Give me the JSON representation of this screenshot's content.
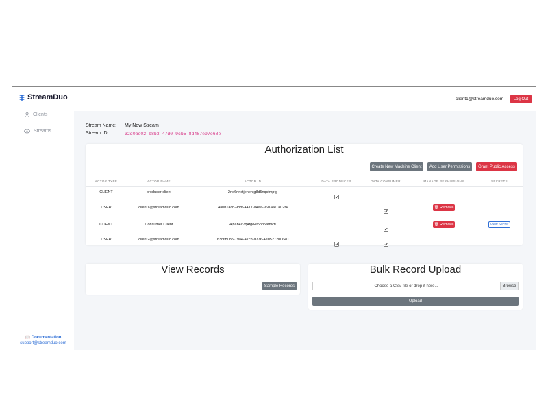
{
  "sidebar": {
    "brand": "StreamDuo",
    "nav": [
      "Clients",
      "Streams"
    ],
    "footer": {
      "documentation": "Documentation",
      "support": "support@streamduo.com"
    }
  },
  "header": {
    "email": "client1@streamduo.com",
    "logout": "Log Out"
  },
  "stream": {
    "name_label": "Stream Name:",
    "name": "My New Stream",
    "id_label": "Stream ID:",
    "id": "32d0be02-b8b3-47d0-9cb5-8d487e97e68e"
  },
  "authorization": {
    "title": "Authorization List",
    "buttons": [
      "Create New Machine Client",
      "Add User Permissions",
      "Grant Public Access"
    ],
    "table": {
      "columns": [
        "ACTOR TYPE",
        "ACTOR NAME",
        "ACTOR ID",
        "DATA PRODUCER",
        "DATA CONSUMER",
        "MANAGE PERMISSIONS",
        "SECRETS"
      ],
      "rows": [
        {
          "actor_type": "CLIENT",
          "actor_name": "producer client",
          "actor_id": "2ne6nnctjenenlg8d5nqcfmpfg",
          "data_producer": true,
          "data_consumer": false,
          "manage_permissions": null,
          "secrets": null
        },
        {
          "actor_type": "USER",
          "actor_name": "client1@streamduo.com",
          "actor_id": "4a0b1acb-988f-4417-a4aa-9603ee1a02f4",
          "data_producer": false,
          "data_consumer": true,
          "manage_permissions": "Remove",
          "secrets": null
        },
        {
          "actor_type": "CLIENT",
          "actor_name": "Consumer Client",
          "actor_id": "4jhah4v7q4tgo4t5ob5afmctl",
          "data_producer": false,
          "data_consumer": true,
          "manage_permissions": "Remove",
          "secrets": "View Secret"
        },
        {
          "actor_type": "USER",
          "actor_name": "client2@streamduo.com",
          "actor_id": "d3c6b085-79a4-47c8-a776-4ed527200640",
          "data_producer": true,
          "data_consumer": true,
          "manage_permissions": null,
          "secrets": null
        }
      ]
    }
  },
  "records": {
    "title": "View Records",
    "button": "Sample Records"
  },
  "upload": {
    "title": "Bulk Record Upload",
    "placeholder": "Choose a CSV file or drop it here...",
    "browse": "Browse",
    "button": "Upload"
  }
}
